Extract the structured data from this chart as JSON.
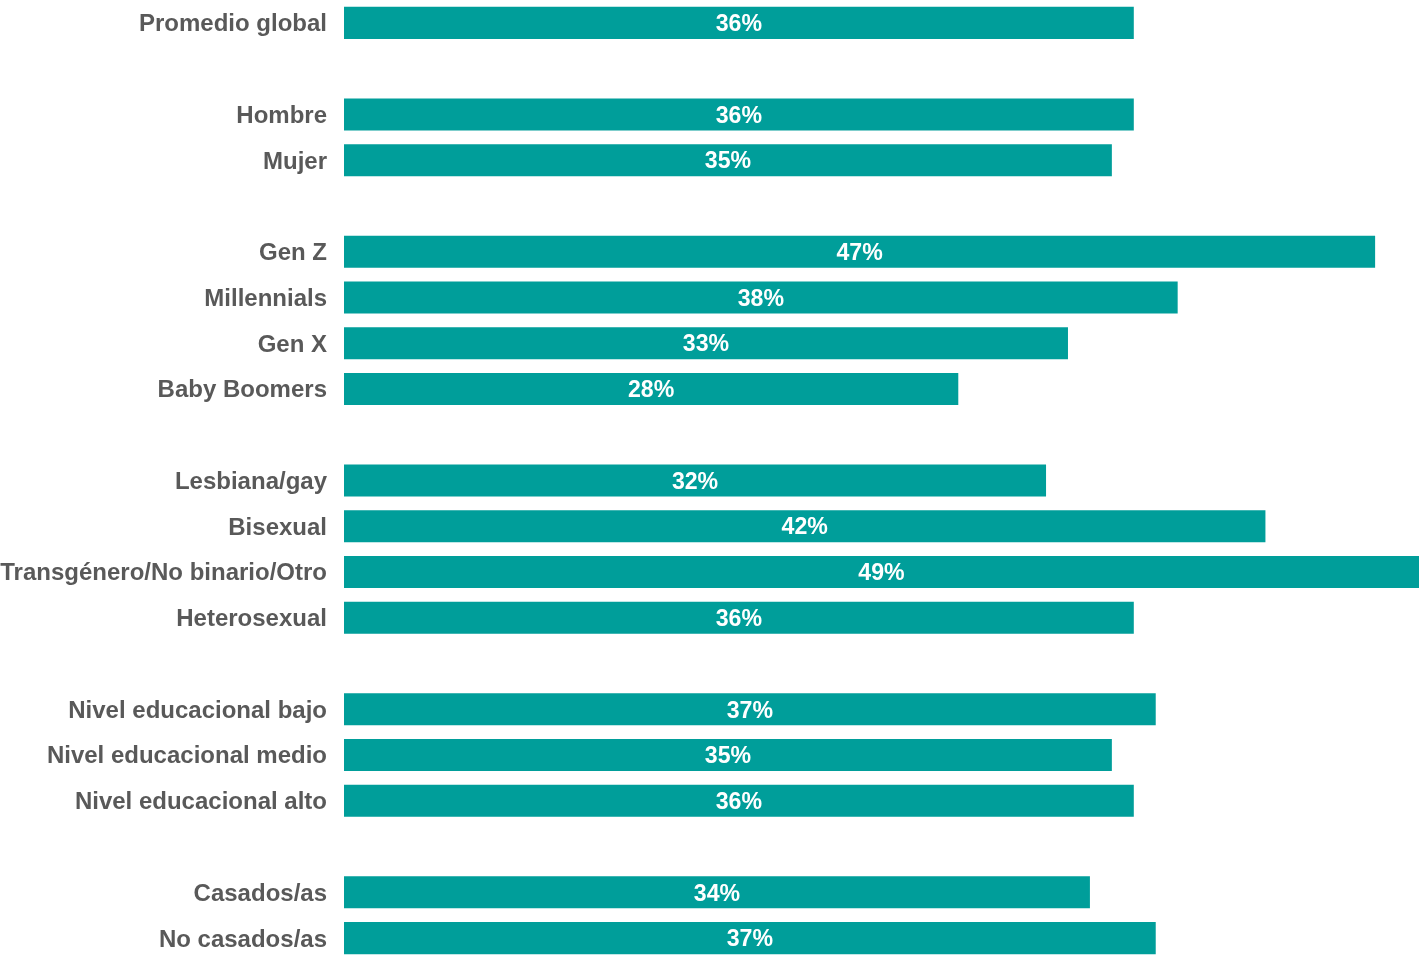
{
  "chart_data": {
    "type": "bar",
    "orientation": "horizontal",
    "categories": [
      "Promedio global",
      null,
      "Hombre",
      "Mujer",
      null,
      "Gen Z",
      "Millennials",
      "Gen X",
      "Baby Boomers",
      null,
      "Lesbiana/gay",
      "Bisexual",
      "Transgénero/No binario/Otro",
      "Heterosexual",
      null,
      "Nivel educacional bajo",
      "Nivel educacional medio",
      "Nivel educacional alto",
      null,
      "Casados/as",
      "No casados/as"
    ],
    "values": [
      36,
      null,
      36,
      35,
      null,
      47,
      38,
      33,
      28,
      null,
      32,
      42,
      49,
      36,
      null,
      37,
      35,
      36,
      null,
      34,
      37
    ],
    "value_labels": [
      "36%",
      null,
      "36%",
      "35%",
      null,
      "47%",
      "38%",
      "33%",
      "28%",
      null,
      "32%",
      "42%",
      "49%",
      "36%",
      null,
      "37%",
      "35%",
      "36%",
      null,
      "34%",
      "37%"
    ],
    "color": "#009e9a",
    "legend": false
  }
}
